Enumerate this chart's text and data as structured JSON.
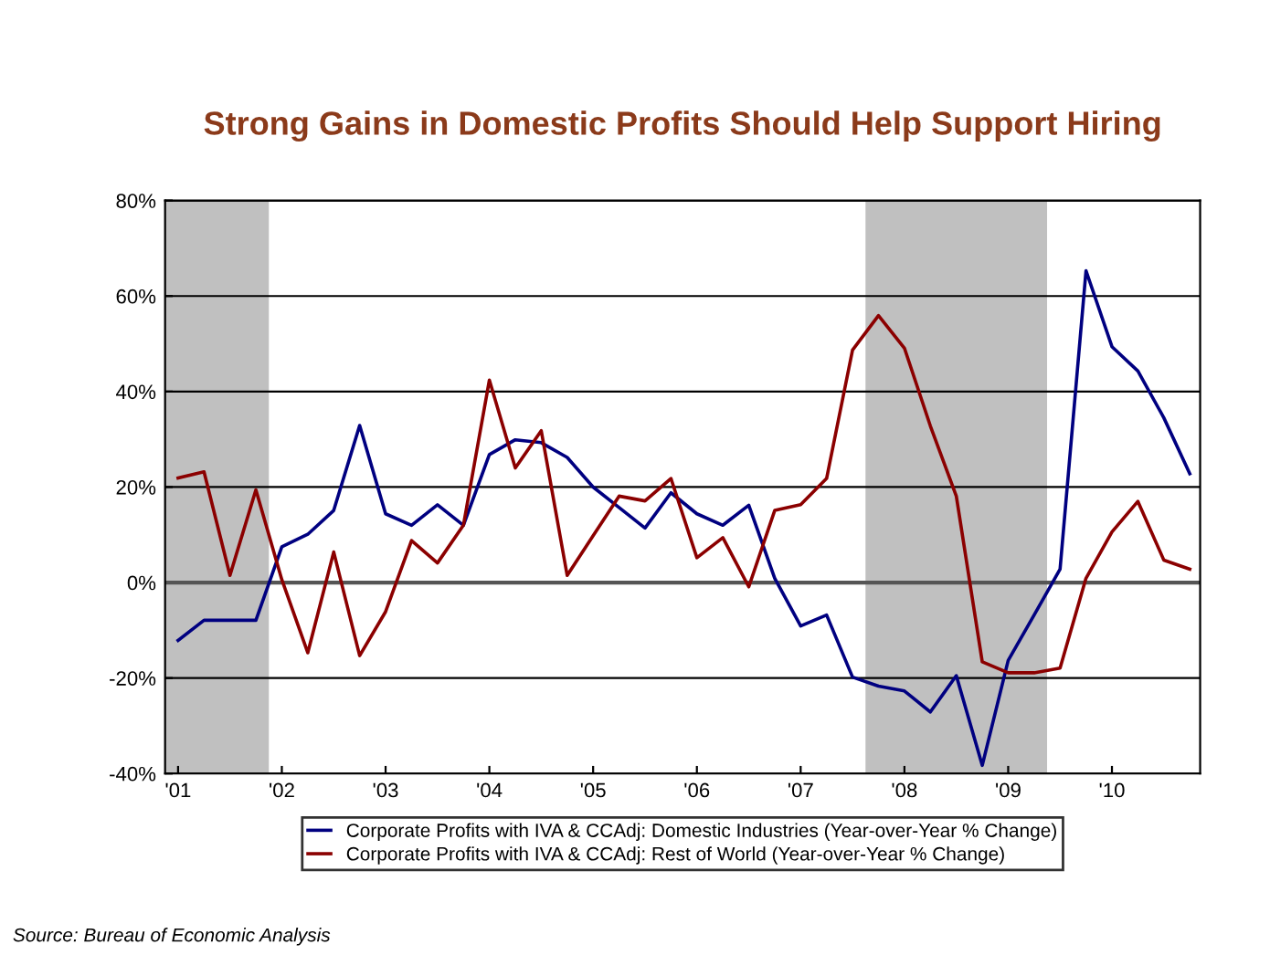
{
  "chart_data": {
    "type": "line",
    "title": "Strong Gains in Domestic Profits Should Help Support Hiring",
    "x": [
      2001.0,
      2001.25,
      2001.5,
      2001.75,
      2002.0,
      2002.25,
      2002.5,
      2002.75,
      2003.0,
      2003.25,
      2003.5,
      2003.75,
      2004.0,
      2004.25,
      2004.5,
      2004.75,
      2005.0,
      2005.25,
      2005.5,
      2005.75,
      2006.0,
      2006.25,
      2006.5,
      2006.75,
      2007.0,
      2007.25,
      2007.5,
      2007.75,
      2008.0,
      2008.25,
      2008.5,
      2008.75,
      2009.0,
      2009.25,
      2009.5,
      2009.75,
      2010.0,
      2010.25,
      2010.5,
      2010.75
    ],
    "series": [
      {
        "name": "Corporate Profits with IVA & CCAdj: Domestic Industries (Year-over-Year % Change)",
        "color": "#000080",
        "values": [
          -12.1,
          -7.9,
          -7.9,
          -7.9,
          7.5,
          10.1,
          15.1,
          32.9,
          14.4,
          12.0,
          16.3,
          12.0,
          26.8,
          29.9,
          29.3,
          26.2,
          20.0,
          15.7,
          11.4,
          18.8,
          14.4,
          12.0,
          16.2,
          0.9,
          -9.1,
          -6.8,
          -19.8,
          -21.7,
          -22.7,
          -27.1,
          -19.5,
          -38.3,
          -16.3,
          -6.8,
          2.8,
          65.3,
          49.4,
          44.3,
          34.5,
          22.8
        ]
      },
      {
        "name": "Corporate Profits with IVA & CCAdj: Rest of World (Year-over-Year % Change)",
        "color": "#8b0000",
        "values": [
          21.9,
          23.2,
          1.5,
          19.4,
          0.6,
          -14.7,
          6.4,
          -15.3,
          -6.1,
          8.8,
          4.1,
          12.0,
          42.4,
          24.0,
          31.8,
          1.5,
          9.8,
          18.1,
          17.1,
          21.8,
          5.2,
          9.4,
          -0.9,
          15.1,
          16.3,
          21.8,
          48.7,
          55.9,
          49.1,
          32.8,
          18.1,
          -16.6,
          -18.9,
          -18.9,
          -17.9,
          0.9,
          10.6,
          17.0,
          4.7,
          2.8
        ]
      }
    ],
    "xlim": [
      2000.875,
      2010.85
    ],
    "xticks": [
      {
        "value": 2001,
        "label": "'01"
      },
      {
        "value": 2002,
        "label": "'02"
      },
      {
        "value": 2003,
        "label": "'03"
      },
      {
        "value": 2004,
        "label": "'04"
      },
      {
        "value": 2005,
        "label": "'05"
      },
      {
        "value": 2006,
        "label": "'06"
      },
      {
        "value": 2007,
        "label": "'07"
      },
      {
        "value": 2008,
        "label": "'08"
      },
      {
        "value": 2009,
        "label": "'09"
      },
      {
        "value": 2010,
        "label": "'10"
      }
    ],
    "ylim": [
      -40,
      80
    ],
    "yticks": [
      {
        "value": -40,
        "label": "-40%"
      },
      {
        "value": -20,
        "label": "-20%"
      },
      {
        "value": 0,
        "label": "0%"
      },
      {
        "value": 20,
        "label": "20%"
      },
      {
        "value": 40,
        "label": "40%"
      },
      {
        "value": 60,
        "label": "60%"
      },
      {
        "value": 80,
        "label": "80%"
      }
    ],
    "bands": [
      {
        "axis": "x",
        "from": 2000.875,
        "to": 2001.875,
        "color": "#c0c0c0"
      },
      {
        "axis": "x",
        "from": 2007.625,
        "to": 2009.375,
        "color": "#c0c0c0"
      }
    ],
    "grid": "y",
    "legend": "bottom",
    "marker": "none",
    "line_style": "solid",
    "annotations": [
      "Source: Bureau of Economic Analysis"
    ]
  }
}
